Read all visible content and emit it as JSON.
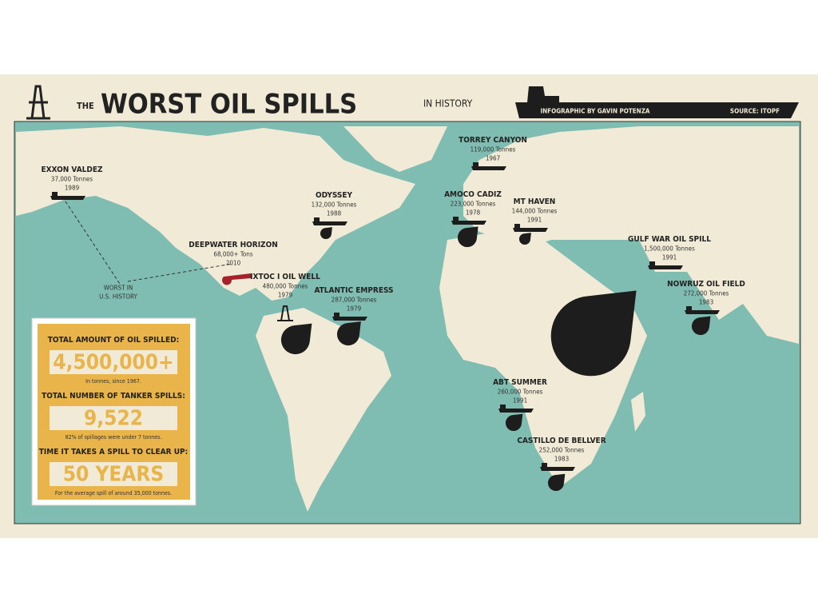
{
  "header": {
    "the": "THE",
    "title": "WORST OIL SPILLS",
    "in_history": "IN HISTORY",
    "credit": "INFOGRAPHIC BY GAVIN POTENZA",
    "source": "SOURCE: ITOPF"
  },
  "spills": [
    {
      "name": "EXXON VALDEZ",
      "amount": "37,000 Tonnes",
      "year": "1989"
    },
    {
      "name": "TORREY CANYON",
      "amount": "119,000 Tonnes",
      "year": "1967"
    },
    {
      "name": "ODYSSEY",
      "amount": "132,000 Tonnes",
      "year": "1988"
    },
    {
      "name": "AMOCO CADIZ",
      "amount": "223,000 Tonnes",
      "year": "1978"
    },
    {
      "name": "MT HAVEN",
      "amount": "144,000 Tonnes",
      "year": "1991"
    },
    {
      "name": "DEEPWATER HORIZON",
      "amount": "68,000+ Tons",
      "year": "2010"
    },
    {
      "name": "IXTOC I OIL WELL",
      "amount": "480,000 Tonnes",
      "year": "1979"
    },
    {
      "name": "ATLANTIC EMPRESS",
      "amount": "287,000 Tonnes",
      "year": "1979"
    },
    {
      "name": "GULF WAR OIL SPILL",
      "amount": "1,500,000 Tonnes",
      "year": "1991"
    },
    {
      "name": "NOWRUZ OIL FIELD",
      "amount": "272,000 Tonnes",
      "year": "1983"
    },
    {
      "name": "ABT SUMMER",
      "amount": "260,000 Tonnes",
      "year": "1991"
    },
    {
      "name": "CASTILLO DE BELLVER",
      "amount": "252,000 Tonnes",
      "year": "1983"
    }
  ],
  "note": {
    "line1": "WORST IN",
    "line2": "U.S. HISTORY"
  },
  "stats": [
    {
      "heading": "TOTAL AMOUNT OF OIL SPILLED:",
      "value": "4,500,000+",
      "caption": "In tonnes, since 1967."
    },
    {
      "heading": "TOTAL NUMBER OF TANKER SPILLS:",
      "value": "9,522",
      "caption": "82% of spillages were under 7 tonnes."
    },
    {
      "heading": "TIME IT TAKES A SPILL TO CLEAR UP:",
      "value": "50 YEARS",
      "caption": "For the average spill of around 35,000 tonnes."
    }
  ]
}
